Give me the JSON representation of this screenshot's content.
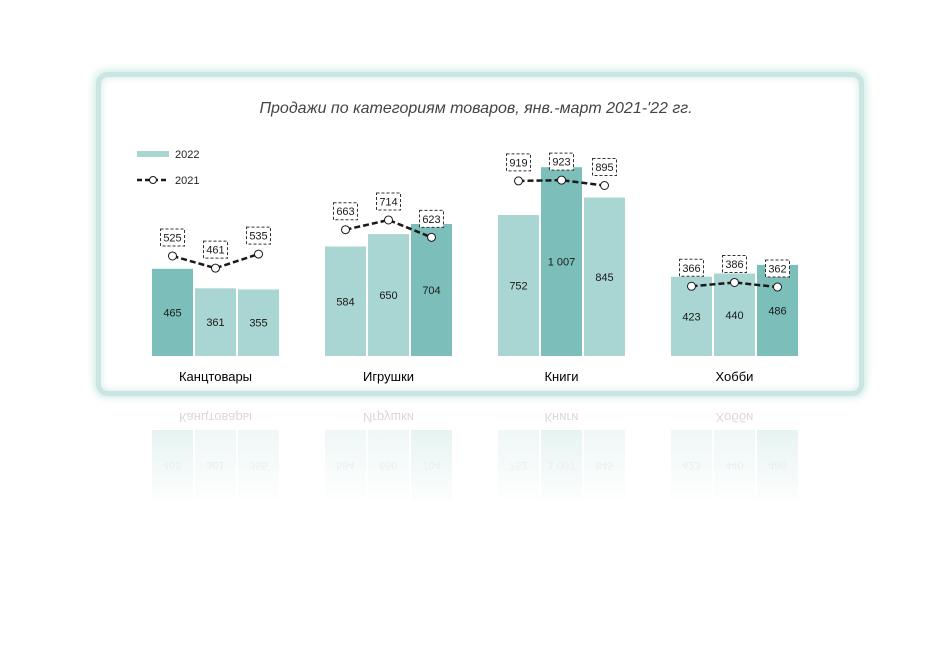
{
  "chart_data": {
    "type": "bar+line",
    "title": "Продажи по категориям товаров, янв.-март 2021-'22 гг.",
    "categories": [
      "Канцтовары",
      "Игрушки",
      "Книги",
      "Хобби"
    ],
    "series": [
      {
        "name": "2022",
        "type": "bar",
        "groups": [
          {
            "category": "Канцтовары",
            "values": [
              465,
              361,
              355
            ],
            "labels": [
              "465",
              "361",
              "355"
            ]
          },
          {
            "category": "Игрушки",
            "values": [
              584,
              650,
              704
            ],
            "labels": [
              "584",
              "650",
              "704"
            ]
          },
          {
            "category": "Книги",
            "values": [
              752,
              1007,
              845
            ],
            "labels": [
              "752",
              "1 007",
              "845"
            ]
          },
          {
            "category": "Хобби",
            "values": [
              423,
              440,
              486
            ],
            "labels": [
              "423",
              "440",
              "486"
            ]
          }
        ]
      },
      {
        "name": "2021",
        "type": "line",
        "groups": [
          {
            "category": "Канцтовары",
            "values": [
              525,
              461,
              535
            ],
            "labels": [
              "525",
              "461",
              "535"
            ]
          },
          {
            "category": "Игрушки",
            "values": [
              663,
              714,
              623
            ],
            "labels": [
              "663",
              "714",
              "623"
            ]
          },
          {
            "category": "Книги",
            "values": [
              919,
              923,
              895
            ],
            "labels": [
              "919",
              "923",
              "895"
            ]
          },
          {
            "category": "Хобби",
            "values": [
              366,
              386,
              362
            ],
            "labels": [
              "366",
              "386",
              "362"
            ]
          }
        ]
      }
    ],
    "legend": [
      "2022",
      "2021"
    ],
    "legend_position": "top-left",
    "colors": {
      "bar_light": "#a9d6d2",
      "bar_dark": "#7cbfba",
      "line": "#1a1a1a",
      "frame": "#c9e6e3"
    }
  }
}
